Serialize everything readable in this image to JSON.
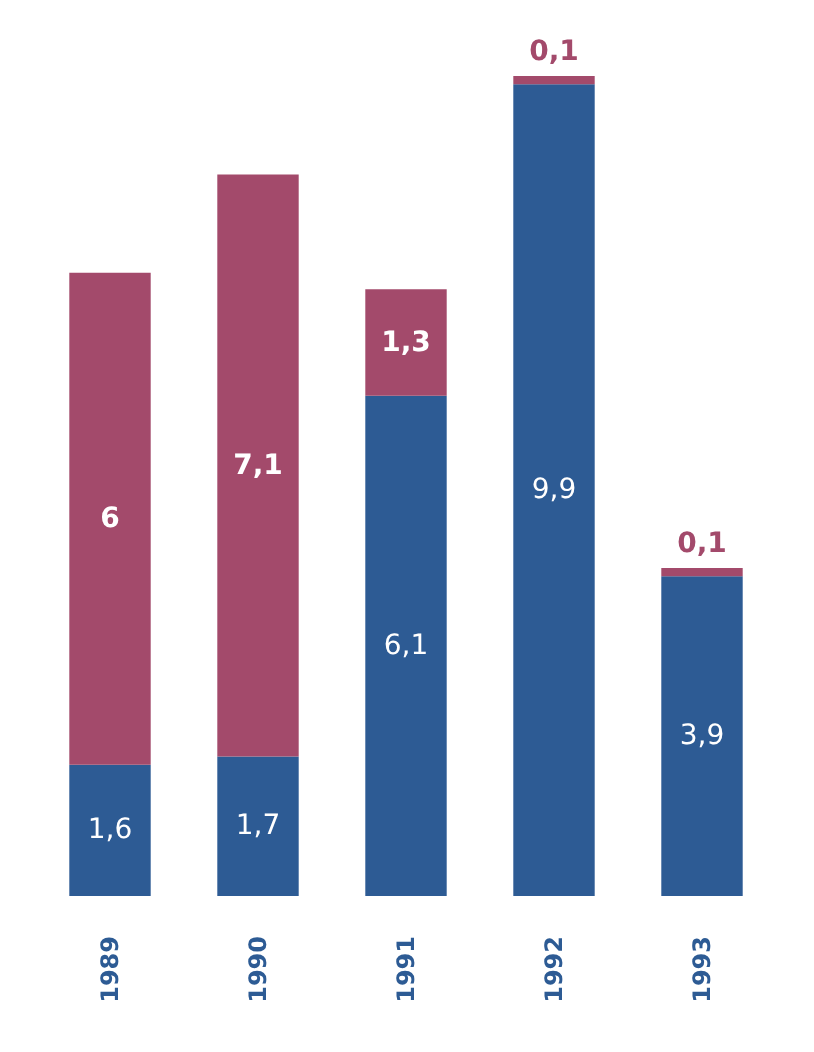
{
  "chart_data": {
    "type": "bar",
    "stacked": true,
    "categories": [
      "1989",
      "1990",
      "1991",
      "1992",
      "1993"
    ],
    "series": [
      {
        "color": "#2d5b94",
        "values": [
          1.6,
          1.7,
          6.1,
          9.9,
          3.9
        ],
        "value_labels": [
          "1,6",
          "1,7",
          "6,1",
          "9,9",
          "3,9"
        ]
      },
      {
        "color": "#a34a6b",
        "values": [
          6,
          7.1,
          1.3,
          0.1,
          0.1
        ],
        "value_labels": [
          "6",
          "7,1",
          "1,3",
          "0,1",
          "0,1"
        ]
      }
    ],
    "tick_labels": "x"
  }
}
